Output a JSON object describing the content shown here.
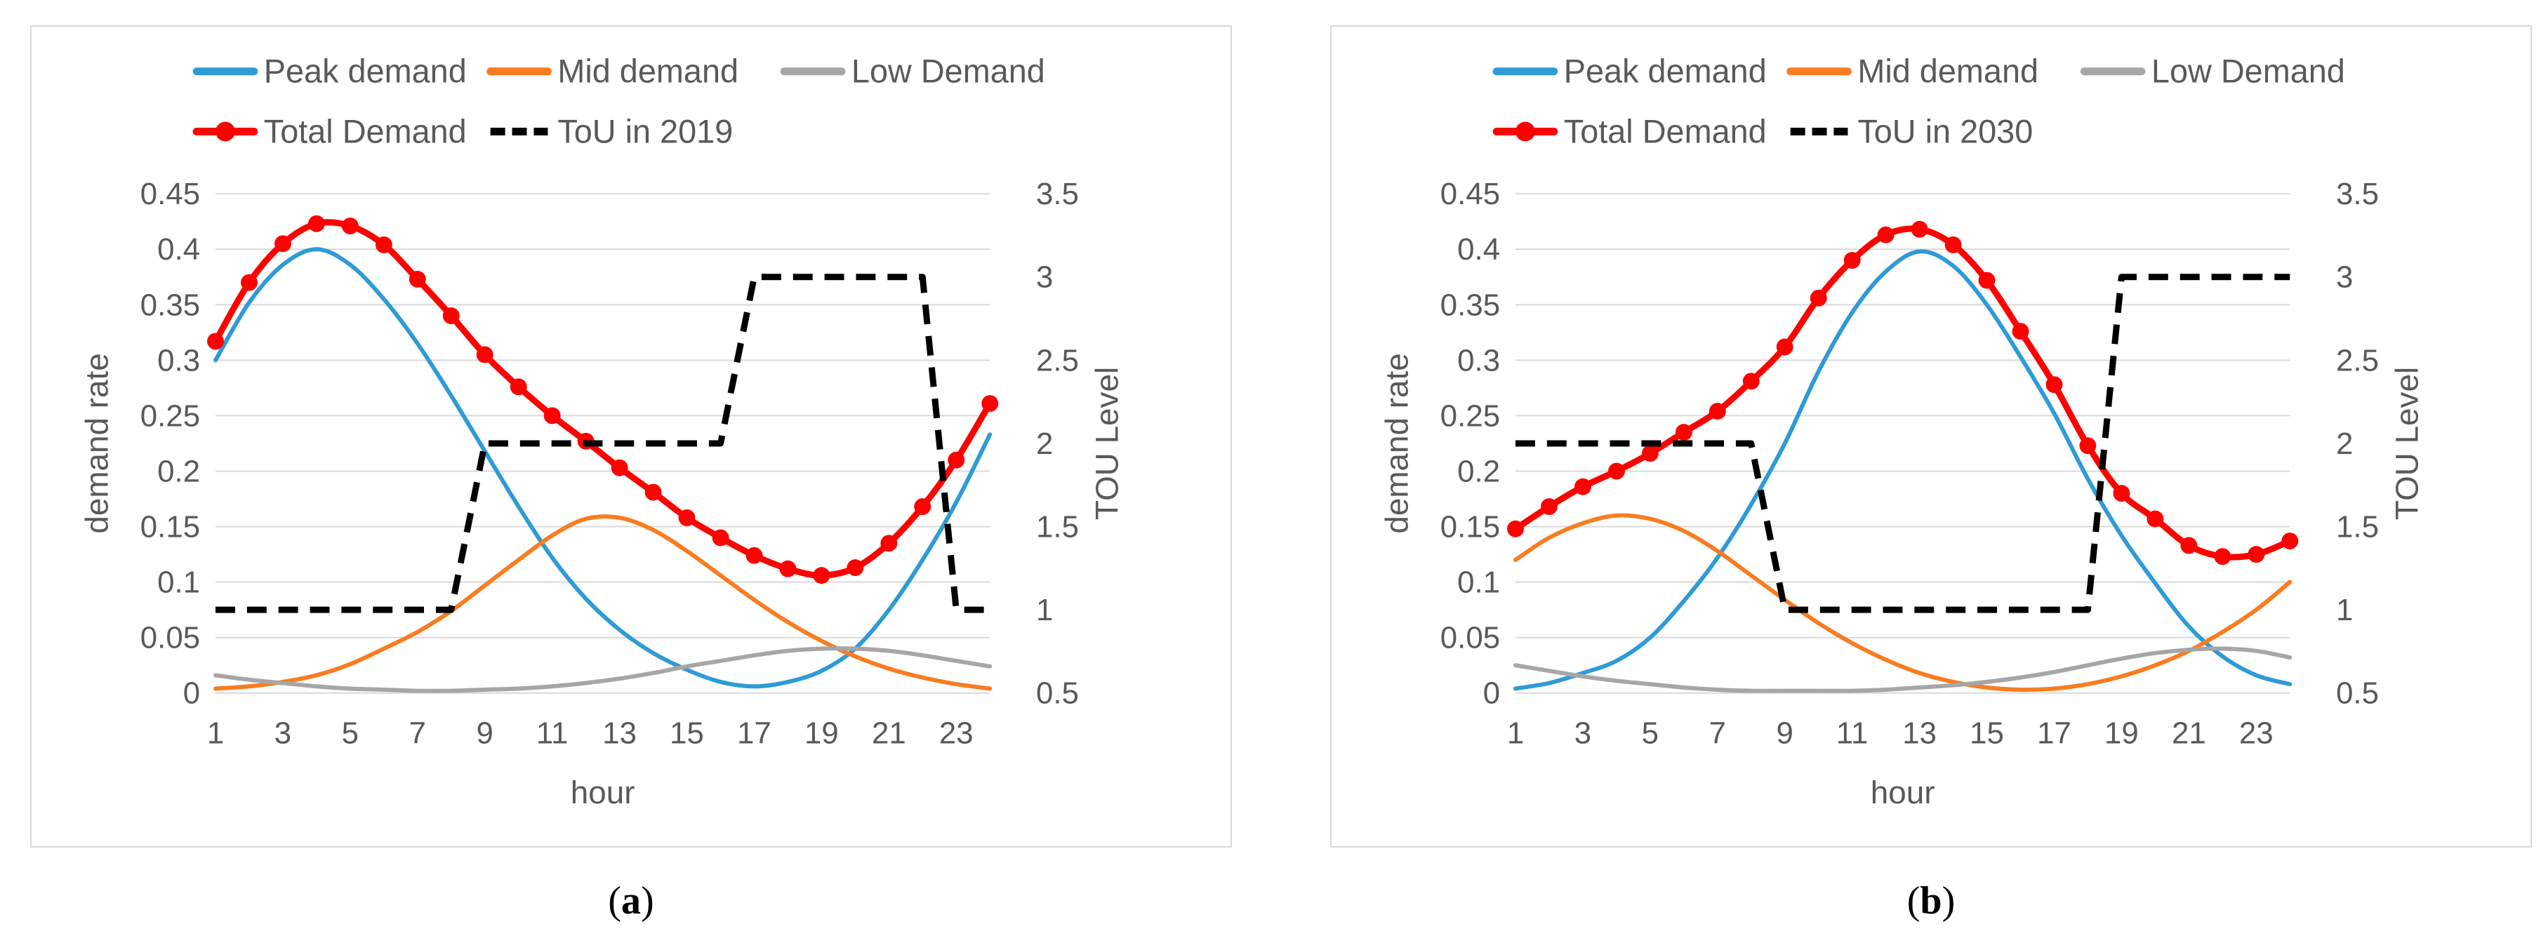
{
  "figure": {
    "captions": [
      {
        "open": "(",
        "letter": "a",
        "close": ")"
      },
      {
        "open": "(",
        "letter": "b",
        "close": ")"
      }
    ],
    "colors": {
      "background": "#FFFFFF",
      "panel_border": "#D9D9D9",
      "gridline": "#D9D9D9",
      "axis_text": "#595959",
      "peak_blue": "#2E9BD6",
      "mid_orange": "#F97C20",
      "low_gray": "#A6A6A6",
      "total_red": "#FF0000",
      "tou_black": "#000000"
    }
  },
  "chart_data": [
    {
      "type": "line",
      "title": "(a)",
      "xlabel": "hour",
      "ylabel_left": "demand rate",
      "ylabel_right": "TOU Level",
      "xlim": [
        1,
        24
      ],
      "ylim_left": [
        0,
        0.45
      ],
      "ylim_right": [
        0.5,
        3.5
      ],
      "grid": "horizontal",
      "legend_position": "top",
      "x": [
        1,
        2,
        3,
        4,
        5,
        6,
        7,
        8,
        9,
        10,
        11,
        12,
        13,
        14,
        15,
        16,
        17,
        18,
        19,
        20,
        21,
        22,
        23,
        24
      ],
      "x_tick_labels": [
        "1",
        "3",
        "5",
        "7",
        "9",
        "11",
        "13",
        "15",
        "17",
        "19",
        "21",
        "23"
      ],
      "y_ticks_left": [
        "0.45",
        "0.4",
        "0.35",
        "0.3",
        "0.25",
        "0.2",
        "0.15",
        "0.1",
        "0.05",
        "0"
      ],
      "y_ticks_right": [
        "3.5",
        "3",
        "2.5",
        "2",
        "1.5",
        "1",
        "0.5"
      ],
      "legend_rows": [
        [
          "Peak demand",
          "Mid demand",
          "Low Demand"
        ],
        [
          "Total Demand",
          "ToU in 2019"
        ]
      ],
      "series": [
        {
          "name": "Peak demand",
          "axis": "left",
          "color": "#2E9BD6",
          "style": "solid",
          "smooth": true,
          "marker": "none",
          "values": [
            0.3,
            0.352,
            0.386,
            0.4,
            0.386,
            0.355,
            0.315,
            0.268,
            0.218,
            0.168,
            0.122,
            0.085,
            0.057,
            0.036,
            0.021,
            0.01,
            0.006,
            0.01,
            0.02,
            0.04,
            0.075,
            0.12,
            0.172,
            0.233
          ]
        },
        {
          "name": "Mid demand",
          "axis": "left",
          "color": "#F97C20",
          "style": "solid",
          "smooth": true,
          "marker": "none",
          "values": [
            0.004,
            0.006,
            0.01,
            0.016,
            0.026,
            0.04,
            0.055,
            0.074,
            0.097,
            0.12,
            0.142,
            0.157,
            0.158,
            0.147,
            0.128,
            0.106,
            0.084,
            0.064,
            0.047,
            0.033,
            0.022,
            0.014,
            0.008,
            0.004
          ]
        },
        {
          "name": "Low Demand",
          "axis": "left",
          "color": "#A6A6A6",
          "style": "solid",
          "smooth": true,
          "marker": "none",
          "values": [
            0.016,
            0.012,
            0.009,
            0.006,
            0.004,
            0.003,
            0.002,
            0.002,
            0.003,
            0.004,
            0.006,
            0.009,
            0.013,
            0.018,
            0.024,
            0.029,
            0.034,
            0.038,
            0.04,
            0.04,
            0.038,
            0.034,
            0.029,
            0.024
          ]
        },
        {
          "name": "Total Demand",
          "axis": "left",
          "color": "#FF0000",
          "style": "solid",
          "smooth": true,
          "marker": "circle",
          "values": [
            0.317,
            0.37,
            0.405,
            0.423,
            0.421,
            0.404,
            0.373,
            0.34,
            0.305,
            0.276,
            0.25,
            0.227,
            0.203,
            0.181,
            0.158,
            0.14,
            0.124,
            0.112,
            0.106,
            0.113,
            0.135,
            0.168,
            0.21,
            0.261
          ]
        },
        {
          "name": "ToU in 2019",
          "axis": "right",
          "color": "#000000",
          "style": "dashed",
          "smooth": false,
          "marker": "none",
          "values": [
            1,
            1,
            1,
            1,
            1,
            1,
            1,
            1,
            2,
            2,
            2,
            2,
            2,
            2,
            2,
            2,
            3,
            3,
            3,
            3,
            3,
            3,
            1,
            1
          ]
        }
      ]
    },
    {
      "type": "line",
      "title": "(b)",
      "xlabel": "hour",
      "ylabel_left": "demand rate",
      "ylabel_right": "TOU Level",
      "xlim": [
        1,
        24
      ],
      "ylim_left": [
        0,
        0.45
      ],
      "ylim_right": [
        0.5,
        3.5
      ],
      "grid": "horizontal",
      "legend_position": "top",
      "x": [
        1,
        2,
        3,
        4,
        5,
        6,
        7,
        8,
        9,
        10,
        11,
        12,
        13,
        14,
        15,
        16,
        17,
        18,
        19,
        20,
        21,
        22,
        23,
        24
      ],
      "x_tick_labels": [
        "1",
        "3",
        "5",
        "7",
        "9",
        "11",
        "13",
        "15",
        "17",
        "19",
        "21",
        "23"
      ],
      "y_ticks_left": [
        "0.45",
        "0.4",
        "0.35",
        "0.3",
        "0.25",
        "0.2",
        "0.15",
        "0.1",
        "0.05",
        "0"
      ],
      "y_ticks_right": [
        "3.5",
        "3",
        "2.5",
        "2",
        "1.5",
        "1",
        "0.5"
      ],
      "legend_rows": [
        [
          "Peak demand",
          "Mid demand",
          "Low Demand"
        ],
        [
          "Total Demand",
          "ToU in 2030"
        ]
      ],
      "series": [
        {
          "name": "Peak demand",
          "axis": "left",
          "color": "#2E9BD6",
          "style": "solid",
          "smooth": true,
          "marker": "none",
          "values": [
            0.004,
            0.009,
            0.018,
            0.029,
            0.05,
            0.083,
            0.122,
            0.17,
            0.225,
            0.29,
            0.343,
            0.38,
            0.398,
            0.385,
            0.35,
            0.303,
            0.252,
            0.193,
            0.142,
            0.099,
            0.06,
            0.033,
            0.016,
            0.008
          ]
        },
        {
          "name": "Mid demand",
          "axis": "left",
          "color": "#F97C20",
          "style": "solid",
          "smooth": true,
          "marker": "none",
          "values": [
            0.12,
            0.14,
            0.153,
            0.16,
            0.157,
            0.146,
            0.128,
            0.106,
            0.084,
            0.063,
            0.045,
            0.03,
            0.018,
            0.01,
            0.005,
            0.003,
            0.004,
            0.008,
            0.015,
            0.025,
            0.038,
            0.055,
            0.075,
            0.1
          ]
        },
        {
          "name": "Low Demand",
          "axis": "left",
          "color": "#A6A6A6",
          "style": "solid",
          "smooth": true,
          "marker": "none",
          "values": [
            0.025,
            0.02,
            0.015,
            0.011,
            0.008,
            0.005,
            0.003,
            0.002,
            0.002,
            0.002,
            0.002,
            0.003,
            0.005,
            0.007,
            0.01,
            0.014,
            0.019,
            0.025,
            0.031,
            0.036,
            0.039,
            0.04,
            0.038,
            0.032
          ]
        },
        {
          "name": "Total Demand",
          "axis": "left",
          "color": "#FF0000",
          "style": "solid",
          "smooth": true,
          "marker": "circle",
          "values": [
            0.148,
            0.168,
            0.186,
            0.2,
            0.216,
            0.235,
            0.254,
            0.281,
            0.312,
            0.356,
            0.39,
            0.413,
            0.418,
            0.404,
            0.372,
            0.326,
            0.278,
            0.223,
            0.18,
            0.157,
            0.133,
            0.123,
            0.125,
            0.137
          ]
        },
        {
          "name": "ToU in 2030",
          "axis": "right",
          "color": "#000000",
          "style": "dashed",
          "smooth": false,
          "marker": "none",
          "values": [
            2,
            2,
            2,
            2,
            2,
            2,
            2,
            2,
            1,
            1,
            1,
            1,
            1,
            1,
            1,
            1,
            1,
            1,
            3,
            3,
            3,
            3,
            3,
            3
          ]
        }
      ]
    }
  ]
}
